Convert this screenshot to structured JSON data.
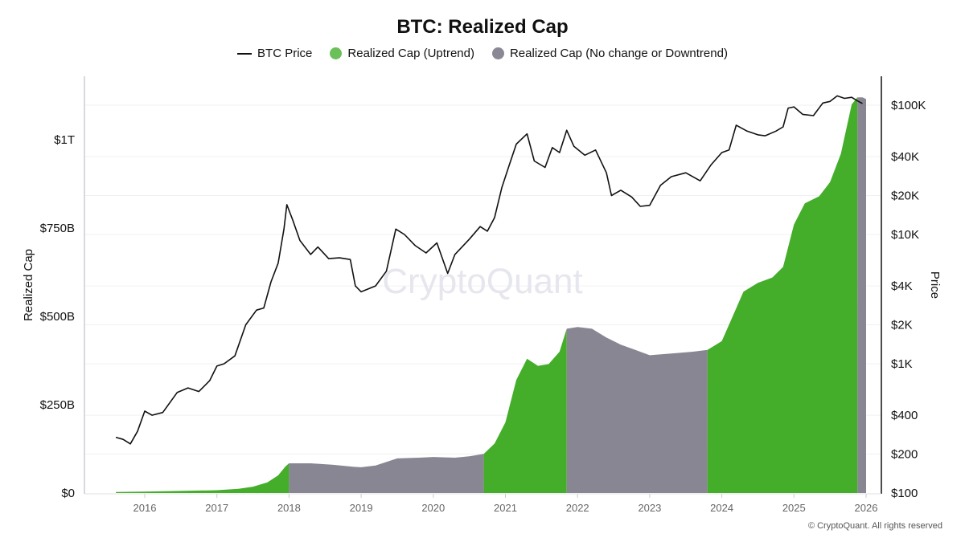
{
  "title": "BTC: Realized Cap",
  "legend": [
    {
      "label": "BTC Price",
      "color": "#111111",
      "type": "line"
    },
    {
      "label": "Realized Cap (Uptrend)",
      "color": "#6cc05a",
      "type": "dot"
    },
    {
      "label": "Realized Cap (No change or Downtrend)",
      "color": "#8a8894",
      "type": "dot"
    }
  ],
  "watermark": "CryptoQuant",
  "copyright": "© CryptoQuant. All rights reserved",
  "chart_data": {
    "type": "area",
    "title": "BTC: Realized Cap",
    "x_ticks": [
      "2016",
      "2017",
      "2018",
      "2019",
      "2020",
      "2021",
      "2022",
      "2023",
      "2024",
      "2025",
      "2026"
    ],
    "xlim": [
      2015.6,
      2026.05
    ],
    "left_axis": {
      "label": "Realized Cap",
      "unit": "USD billions",
      "ylim": [
        0,
        1180
      ],
      "ticks": [
        {
          "value": 0,
          "label": "$0"
        },
        {
          "value": 250,
          "label": "$250B"
        },
        {
          "value": 500,
          "label": "$500B"
        },
        {
          "value": 750,
          "label": "$750B"
        },
        {
          "value": 1000,
          "label": "$1T"
        }
      ]
    },
    "right_axis": {
      "label": "Price",
      "scale": "log",
      "ylim": [
        100,
        150000
      ],
      "ticks": [
        {
          "value": 100,
          "label": "$100"
        },
        {
          "value": 200,
          "label": "$200"
        },
        {
          "value": 400,
          "label": "$400"
        },
        {
          "value": 1000,
          "label": "$1K"
        },
        {
          "value": 2000,
          "label": "$2K"
        },
        {
          "value": 4000,
          "label": "$4K"
        },
        {
          "value": 10000,
          "label": "$10K"
        },
        {
          "value": 20000,
          "label": "$20K"
        },
        {
          "value": 40000,
          "label": "$40K"
        },
        {
          "value": 100000,
          "label": "$100K"
        }
      ]
    },
    "grid": true,
    "legend_position": "top",
    "realized_cap": {
      "x": [
        2015.6,
        2016.0,
        2016.5,
        2017.0,
        2017.3,
        2017.5,
        2017.7,
        2017.85,
        2017.95,
        2018.0,
        2018.3,
        2018.6,
        2018.9,
        2019.0,
        2019.2,
        2019.5,
        2019.8,
        2020.0,
        2020.3,
        2020.5,
        2020.7,
        2020.85,
        2021.0,
        2021.15,
        2021.3,
        2021.45,
        2021.6,
        2021.75,
        2021.85,
        2022.0,
        2022.2,
        2022.4,
        2022.6,
        2022.8,
        2023.0,
        2023.3,
        2023.6,
        2023.8,
        2024.0,
        2024.15,
        2024.3,
        2024.5,
        2024.7,
        2024.85,
        2025.0,
        2025.15,
        2025.35,
        2025.5,
        2025.65,
        2025.8,
        2025.88,
        2025.95,
        2026.0
      ],
      "values": [
        3,
        4,
        6,
        8,
        12,
        18,
        30,
        50,
        75,
        84,
        84,
        80,
        74,
        73,
        78,
        98,
        100,
        102,
        100,
        104,
        111,
        140,
        200,
        320,
        380,
        360,
        365,
        400,
        465,
        470,
        465,
        440,
        420,
        405,
        390,
        395,
        400,
        405,
        430,
        500,
        570,
        595,
        610,
        640,
        760,
        820,
        840,
        880,
        960,
        1100,
        1120,
        1120,
        1115
      ]
    },
    "regimes": [
      {
        "from": 2015.6,
        "to": 2018.0,
        "state": "uptrend"
      },
      {
        "from": 2018.0,
        "to": 2020.7,
        "state": "no change or downtrend"
      },
      {
        "from": 2020.7,
        "to": 2021.85,
        "state": "uptrend"
      },
      {
        "from": 2021.85,
        "to": 2023.8,
        "state": "no change or downtrend"
      },
      {
        "from": 2023.8,
        "to": 2025.88,
        "state": "uptrend"
      },
      {
        "from": 2025.88,
        "to": 2026.0,
        "state": "no change or downtrend"
      }
    ],
    "btc_price": {
      "x": [
        2015.6,
        2015.7,
        2015.8,
        2015.9,
        2016.0,
        2016.1,
        2016.25,
        2016.45,
        2016.6,
        2016.75,
        2016.9,
        2017.0,
        2017.1,
        2017.25,
        2017.4,
        2017.55,
        2017.65,
        2017.75,
        2017.85,
        2017.93,
        2017.97,
        2018.05,
        2018.15,
        2018.3,
        2018.4,
        2018.55,
        2018.7,
        2018.85,
        2018.92,
        2019.0,
        2019.2,
        2019.35,
        2019.48,
        2019.6,
        2019.75,
        2019.9,
        2020.05,
        2020.2,
        2020.3,
        2020.5,
        2020.65,
        2020.75,
        2020.85,
        2020.95,
        2021.05,
        2021.15,
        2021.3,
        2021.4,
        2021.55,
        2021.65,
        2021.75,
        2021.85,
        2021.95,
        2022.1,
        2022.25,
        2022.4,
        2022.47,
        2022.6,
        2022.75,
        2022.87,
        2023.0,
        2023.15,
        2023.3,
        2023.5,
        2023.7,
        2023.85,
        2024.0,
        2024.1,
        2024.2,
        2024.35,
        2024.5,
        2024.6,
        2024.75,
        2024.85,
        2024.92,
        2025.0,
        2025.12,
        2025.27,
        2025.4,
        2025.5,
        2025.6,
        2025.7,
        2025.8,
        2025.88,
        2025.95
      ],
      "values": [
        270,
        260,
        240,
        300,
        430,
        400,
        420,
        600,
        650,
        610,
        740,
        960,
        1000,
        1150,
        2000,
        2600,
        2700,
        4300,
        6000,
        11000,
        17000,
        13000,
        9000,
        7000,
        8000,
        6500,
        6600,
        6400,
        4000,
        3600,
        4000,
        5200,
        11000,
        10000,
        8200,
        7200,
        8600,
        5000,
        7000,
        9200,
        11500,
        10600,
        13500,
        23000,
        34000,
        50000,
        60000,
        37000,
        33000,
        47000,
        43000,
        64000,
        48000,
        41000,
        45000,
        30000,
        20000,
        22000,
        19500,
        16500,
        16800,
        24000,
        28000,
        30000,
        26000,
        34500,
        43000,
        45000,
        70000,
        63000,
        59000,
        58000,
        63000,
        68000,
        95000,
        97000,
        85000,
        83000,
        104000,
        107000,
        118000,
        113000,
        115000,
        108000,
        103000
      ]
    },
    "colors": {
      "uptrend": "#44ad2a",
      "downtrend": "#898693",
      "price": "#111111"
    }
  }
}
